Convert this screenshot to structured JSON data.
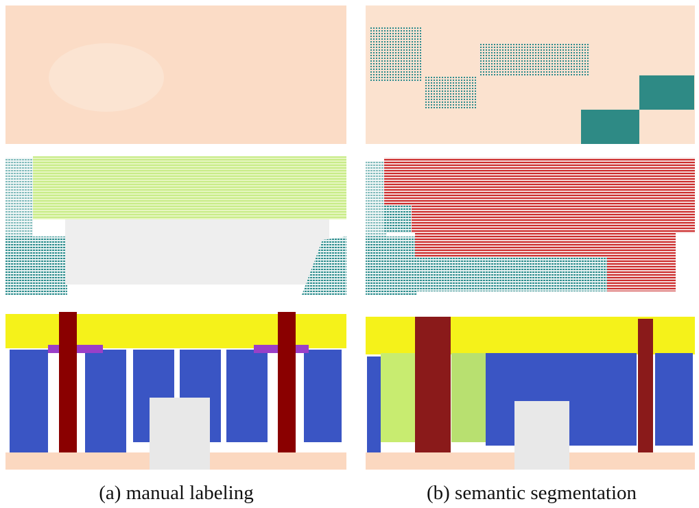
{
  "captions": {
    "left": "(a) manual labeling",
    "right": "(b) semantic segmentation"
  }
}
